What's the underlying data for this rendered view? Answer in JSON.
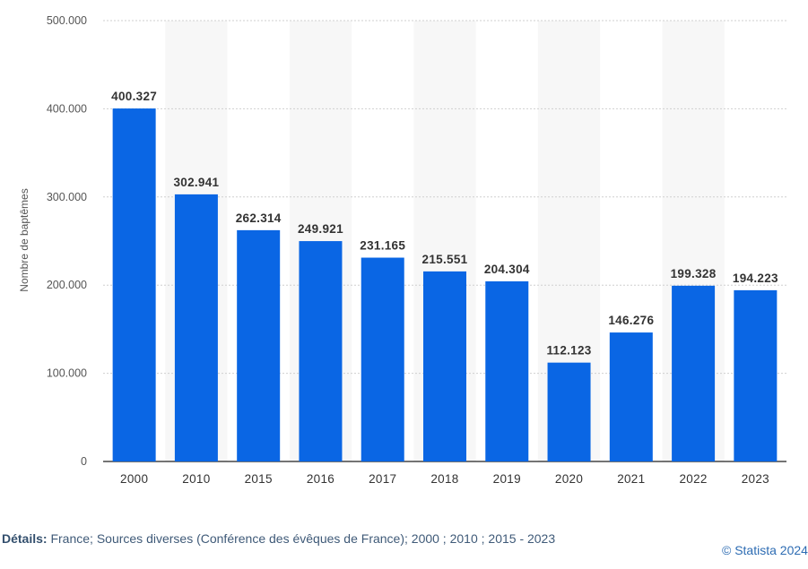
{
  "chart_data": {
    "type": "bar",
    "categories": [
      "2000",
      "2010",
      "2015",
      "2016",
      "2017",
      "2018",
      "2019",
      "2020",
      "2021",
      "2022",
      "2023"
    ],
    "values": [
      400327,
      302941,
      262314,
      249921,
      231165,
      215551,
      204304,
      112123,
      146276,
      199328,
      194223
    ],
    "value_labels": [
      "400.327",
      "302.941",
      "262.314",
      "249.921",
      "231.165",
      "215.551",
      "204.304",
      "112.123",
      "146.276",
      "199.328",
      "194.223"
    ],
    "ylim": [
      0,
      500000
    ],
    "yticks": [
      0,
      100000,
      200000,
      300000,
      400000,
      500000
    ],
    "ytick_labels": [
      "0",
      "100.000",
      "200.000",
      "300.000",
      "400.000",
      "500.000"
    ],
    "ylabel": "Nombre de baptêmes",
    "xlabel": "",
    "title": "",
    "grid": "horizontal dotted",
    "bar_color": "#0a66e4"
  },
  "footer": {
    "details_label": "Détails:",
    "details_text": " France; Sources diverses (Conférence des évêques de France); 2000 ; 2010 ; 2015 - 2023",
    "copyright": "© Statista 2024"
  }
}
